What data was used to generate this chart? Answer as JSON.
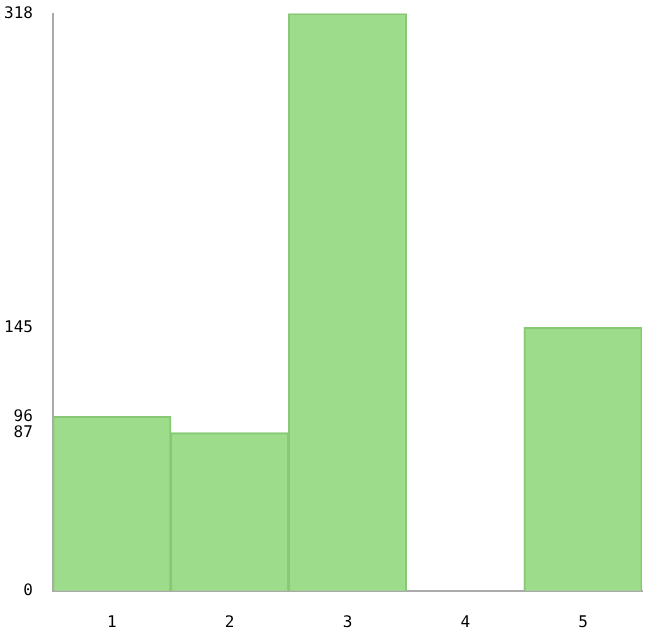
{
  "chart_data": {
    "type": "bar",
    "categories": [
      "1",
      "2",
      "3",
      "4",
      "5"
    ],
    "values": [
      96,
      87,
      318,
      0,
      145
    ],
    "color": "#9ddc8a",
    "ylim": [
      0,
      318
    ],
    "yticks": [
      0,
      87,
      96,
      145,
      318
    ],
    "grid": false,
    "legend": false
  }
}
